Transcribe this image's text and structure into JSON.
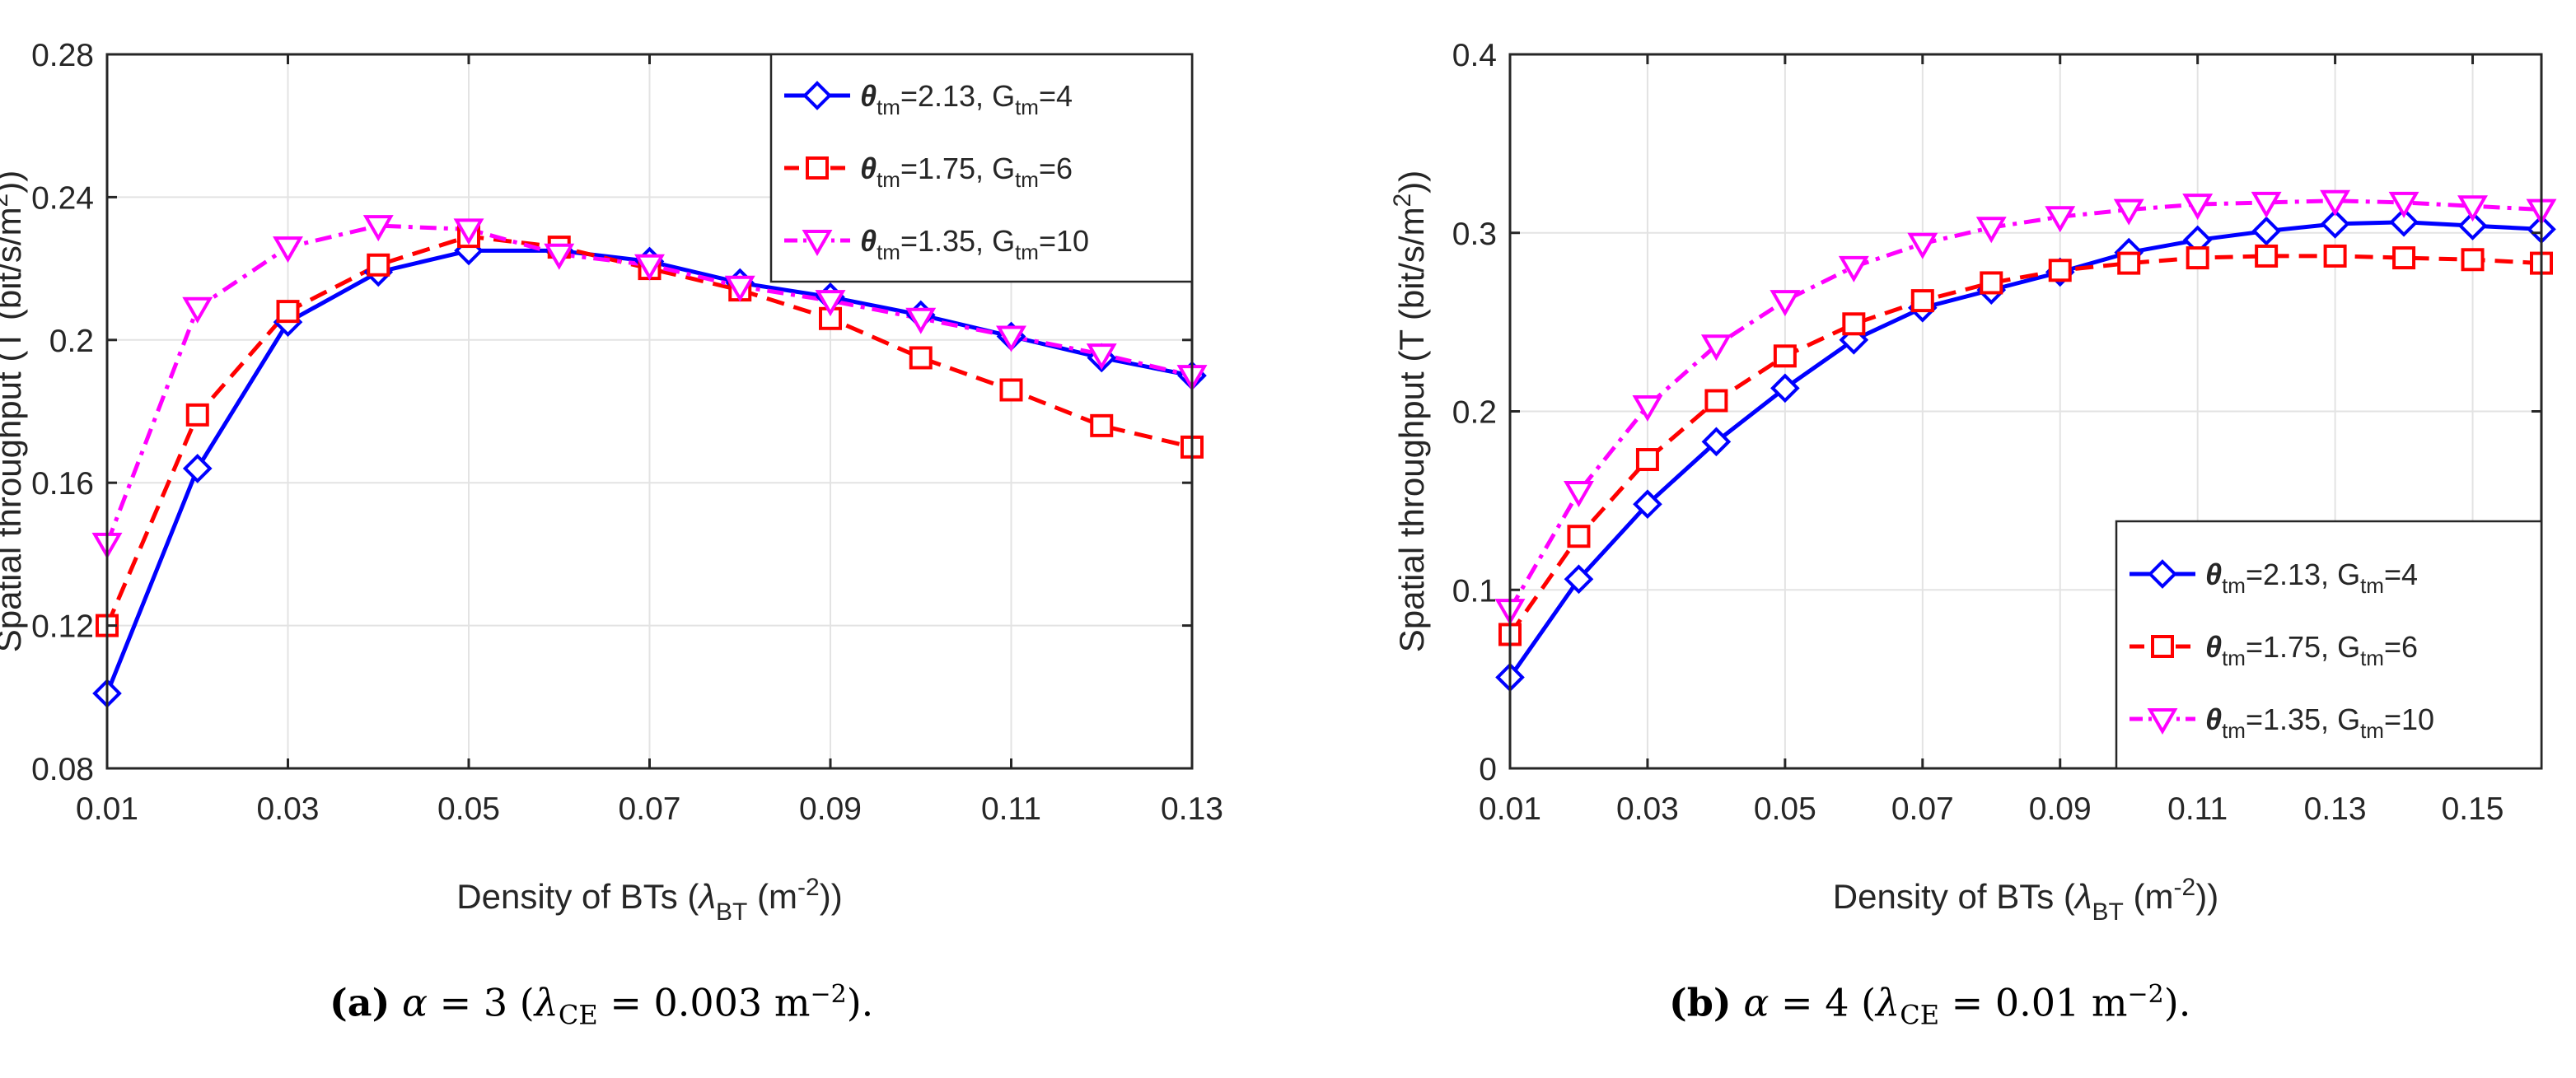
{
  "chart_data": [
    {
      "type": "line",
      "panel": "a",
      "caption": {
        "label": "(a)",
        "alpha": "3",
        "lambda_ce": "0.003",
        "unit": "m",
        "exp": "−2"
      },
      "xlabel": "Density of BTs (λ_BT (m^-2))",
      "xlabel_parts": {
        "pre": "Density of BTs (",
        "lambda": "λ",
        "sub": "BT",
        "mid": " (m",
        "sup": "-2",
        "post": "))"
      },
      "ylabel": "Spatial throughput (T (bit/s/m^2))",
      "ylabel_parts": {
        "pre": "Spatial throughput (T (bit/s/m",
        "sup": "2",
        "post": "))"
      },
      "xlim": [
        0.01,
        0.13
      ],
      "ylim": [
        0.08,
        0.28
      ],
      "xticks": [
        "0.01",
        "0.03",
        "0.05",
        "0.07",
        "0.09",
        "0.11",
        "0.13"
      ],
      "yticks": [
        "0.08",
        "0.12",
        "0.16",
        "0.2",
        "0.24",
        "0.28"
      ],
      "grid": true,
      "legend_position": "top-right",
      "x": [
        0.01,
        0.02,
        0.03,
        0.04,
        0.05,
        0.06,
        0.07,
        0.08,
        0.09,
        0.1,
        0.11,
        0.12,
        0.13
      ],
      "series": [
        {
          "theta": "2.13",
          "G": "4",
          "color": "#0000ff",
          "style": "solid",
          "marker": "diamond",
          "values": [
            0.101,
            0.164,
            0.205,
            0.219,
            0.225,
            0.225,
            0.222,
            0.216,
            0.212,
            0.207,
            0.201,
            0.195,
            0.19
          ]
        },
        {
          "theta": "1.75",
          "G": "6",
          "color": "#ff0000",
          "style": "dash",
          "marker": "square",
          "values": [
            0.12,
            0.179,
            0.208,
            0.221,
            0.229,
            0.226,
            0.22,
            0.214,
            0.206,
            0.195,
            0.186,
            0.176,
            0.17
          ]
        },
        {
          "theta": "1.35",
          "G": "10",
          "color": "#ff00ff",
          "style": "dashdot",
          "marker": "triangle-down",
          "values": [
            0.143,
            0.209,
            0.226,
            0.232,
            0.231,
            0.224,
            0.221,
            0.215,
            0.211,
            0.206,
            0.201,
            0.196,
            0.19
          ]
        }
      ]
    },
    {
      "type": "line",
      "panel": "b",
      "caption": {
        "label": "(b)",
        "alpha": "4",
        "lambda_ce": "0.01",
        "unit": "m",
        "exp": "−2"
      },
      "xlabel": "Density of BTs (λ_BT (m^-2))",
      "xlabel_parts": {
        "pre": "Density of BTs (",
        "lambda": "λ",
        "sub": "BT",
        "mid": " (m",
        "sup": "-2",
        "post": "))"
      },
      "ylabel": "Spatial throughput (T (bit/s/m^2))",
      "ylabel_parts": {
        "pre": "Spatial throughput (T (bit/s/m",
        "sup": "2",
        "post": "))"
      },
      "xlim": [
        0.01,
        0.16
      ],
      "ylim": [
        0,
        0.4
      ],
      "xticks": [
        "0.01",
        "0.03",
        "0.05",
        "0.07",
        "0.09",
        "0.11",
        "0.13",
        "0.15"
      ],
      "yticks": [
        "0",
        "0.1",
        "0.2",
        "0.3",
        "0.4"
      ],
      "grid": true,
      "legend_position": "bottom-right",
      "x": [
        0.01,
        0.02,
        0.03,
        0.04,
        0.05,
        0.06,
        0.07,
        0.08,
        0.09,
        0.1,
        0.11,
        0.12,
        0.13,
        0.14,
        0.15,
        0.16
      ],
      "series": [
        {
          "theta": "2.13",
          "G": "4",
          "color": "#0000ff",
          "style": "solid",
          "marker": "diamond",
          "values": [
            0.051,
            0.106,
            0.148,
            0.183,
            0.213,
            0.24,
            0.258,
            0.268,
            0.278,
            0.289,
            0.296,
            0.301,
            0.305,
            0.306,
            0.304,
            0.302
          ]
        },
        {
          "theta": "1.75",
          "G": "6",
          "color": "#ff0000",
          "style": "dash",
          "marker": "square",
          "values": [
            0.075,
            0.13,
            0.173,
            0.206,
            0.231,
            0.249,
            0.262,
            0.272,
            0.279,
            0.283,
            0.286,
            0.287,
            0.287,
            0.286,
            0.285,
            0.283
          ]
        },
        {
          "theta": "1.35",
          "G": "10",
          "color": "#ff00ff",
          "style": "dashdot",
          "marker": "triangle-down",
          "values": [
            0.089,
            0.155,
            0.203,
            0.237,
            0.262,
            0.281,
            0.294,
            0.303,
            0.309,
            0.313,
            0.316,
            0.317,
            0.318,
            0.317,
            0.315,
            0.313
          ]
        }
      ]
    }
  ]
}
